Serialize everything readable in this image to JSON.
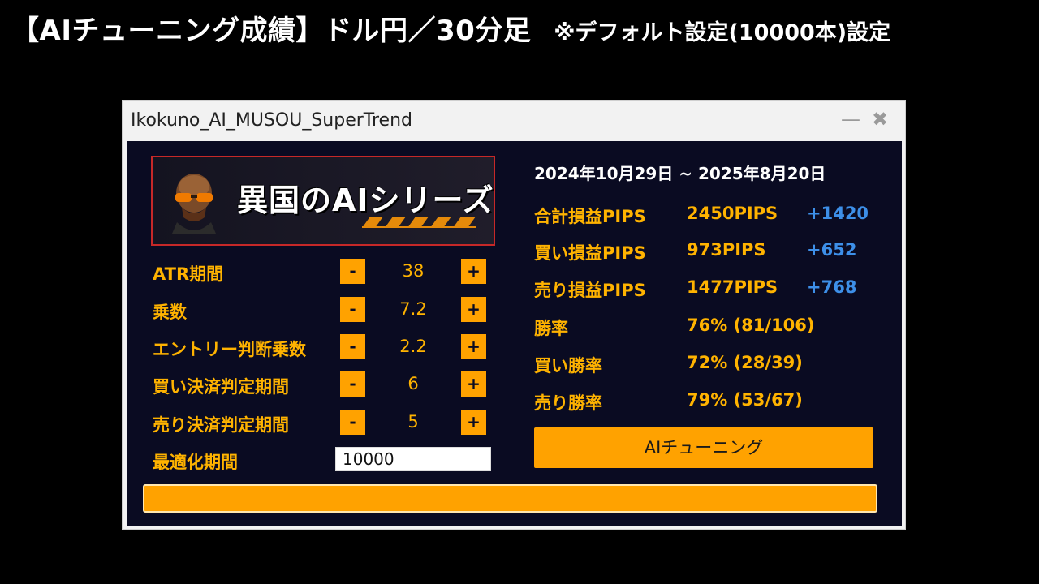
{
  "headline": {
    "main": "【AIチューニング成績】ドル円／30分足",
    "note": "※デフォルト設定(10000本)設定"
  },
  "window": {
    "title": "Ikokuno_AI_MUSOU_SuperTrend",
    "minimize_glyph": "—",
    "close_glyph": "✖"
  },
  "banner": {
    "text": "異国のAIシリーズ",
    "icon": "bald-man-with-sunglasses-avatar"
  },
  "params": [
    {
      "label": "ATR期間",
      "value": "38"
    },
    {
      "label": "乗数",
      "value": "7.2"
    },
    {
      "label": "エントリー判断乗数",
      "value": "2.2"
    },
    {
      "label": "買い決済判定期間",
      "value": "6"
    },
    {
      "label": "売り決済判定期間",
      "value": "5"
    }
  ],
  "stepper": {
    "minus": "-",
    "plus": "+"
  },
  "optimize": {
    "label": "最適化期間",
    "value": "10000"
  },
  "results": {
    "dates": "2024年10月29日 ~ 2025年8月20日",
    "rows": [
      {
        "label": "合計損益PIPS",
        "value": "2450PIPS",
        "delta": "+1420"
      },
      {
        "label": "買い損益PIPS",
        "value": "973PIPS",
        "delta": "+652"
      },
      {
        "label": "売り損益PIPS",
        "value": "1477PIPS",
        "delta": "+768"
      },
      {
        "label": "勝率",
        "value": "76%  (81/106)",
        "delta": ""
      },
      {
        "label": "買い勝率",
        "value": "72%  (28/39)",
        "delta": ""
      },
      {
        "label": "売り勝率",
        "value": "79%  (53/67)",
        "delta": ""
      }
    ]
  },
  "tune_button": "AIチューニング",
  "progress": {
    "fraction": 1.0
  },
  "colors": {
    "accent": "#ffa200",
    "label": "#ffb300",
    "delta": "#3d8fe8",
    "panel": "#0a0b22"
  }
}
